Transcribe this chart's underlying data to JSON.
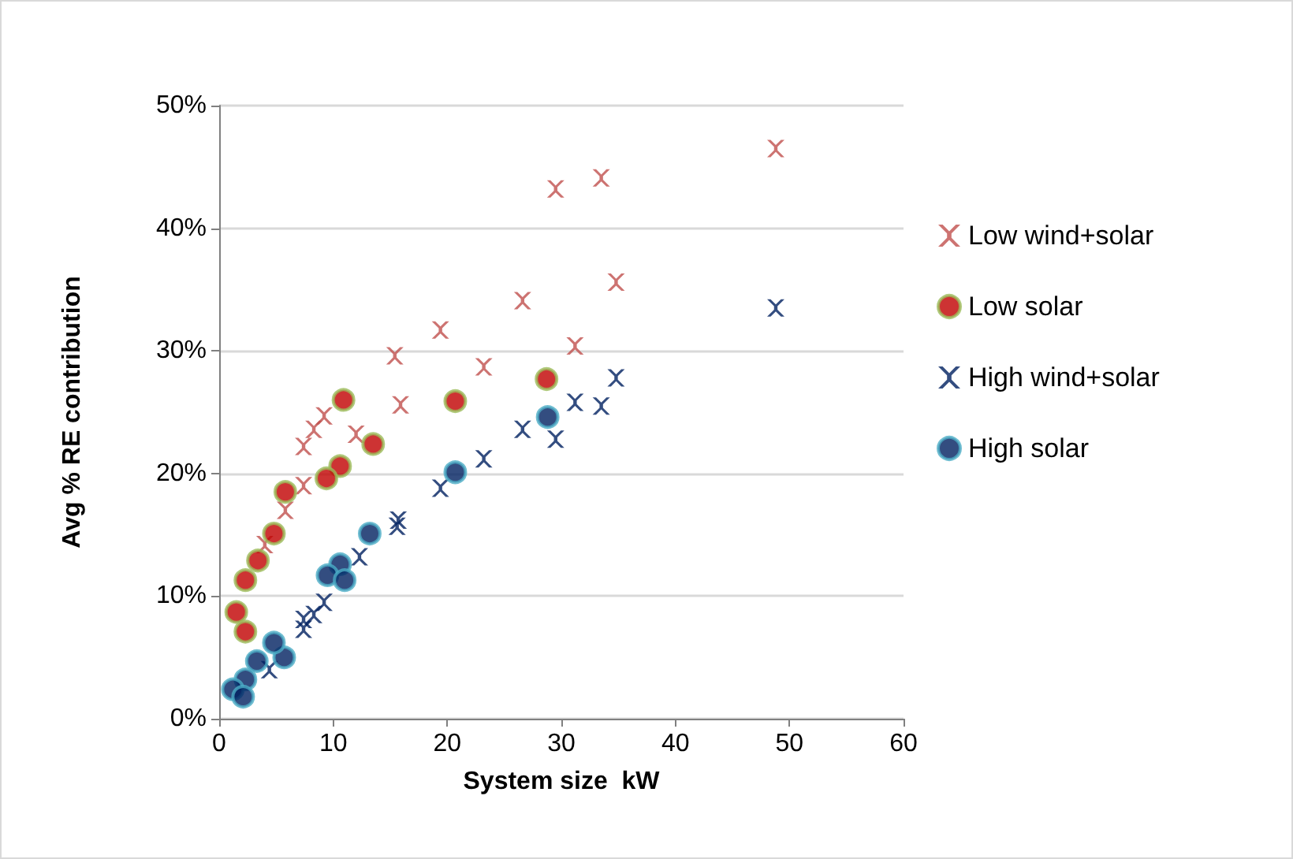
{
  "chart_data": {
    "type": "scatter",
    "xlabel": "System size  kW",
    "ylabel": "Avg % RE contribution",
    "xlim": [
      0,
      60
    ],
    "xticks": [
      0,
      10,
      20,
      30,
      40,
      50,
      60
    ],
    "ylim": [
      0,
      50
    ],
    "yticks": [
      {
        "value": 0,
        "label": "0%"
      },
      {
        "value": 10,
        "label": "10%"
      },
      {
        "value": 20,
        "label": "20%"
      },
      {
        "value": 30,
        "label": "30%"
      },
      {
        "value": 40,
        "label": "40%"
      },
      {
        "value": 50,
        "label": "50%"
      }
    ],
    "grid": "y",
    "legend": "right",
    "series": [
      {
        "name": "Low wind+solar",
        "color": "#c0504d",
        "marker": "cross",
        "x": [
          48.8,
          29.5,
          33.5,
          34.8,
          26.6,
          31.2,
          19.4,
          23.2,
          15.4,
          15.9,
          12,
          9.2,
          8.3,
          7.4,
          7.4,
          5.8,
          4
        ],
        "values": [
          46.5,
          43.2,
          44.1,
          35.6,
          34.1,
          30.4,
          31.7,
          28.7,
          29.6,
          25.6,
          23.2,
          24.7,
          23.6,
          22.2,
          19,
          17,
          14.2
        ]
      },
      {
        "name": "Low solar",
        "color": "#c00000",
        "marker": "circle",
        "x": [
          28.7,
          20.7,
          10.9,
          13.5,
          10.6,
          9.4,
          5.8,
          4.8,
          3.4,
          2.3,
          1.5,
          2.3
        ],
        "values": [
          27.7,
          25.9,
          26,
          22.4,
          20.6,
          19.6,
          18.5,
          15.1,
          12.9,
          11.3,
          8.7,
          7.1
        ]
      },
      {
        "name": "High wind+solar",
        "color": "#002060",
        "marker": "cross",
        "x": [
          48.8,
          34.8,
          31.2,
          33.5,
          29.5,
          26.6,
          23.2,
          19.4,
          15.7,
          15.6,
          12.3,
          9.2,
          8.3,
          7.4,
          7.4,
          4.4
        ],
        "values": [
          33.5,
          27.8,
          25.8,
          25.5,
          22.8,
          23.6,
          21.2,
          18.8,
          16.2,
          15.7,
          13.2,
          9.5,
          8.5,
          8.1,
          7.3,
          4
        ]
      },
      {
        "name": "High solar",
        "color": "#002060",
        "marker": "circle",
        "x": [
          28.8,
          20.7,
          13.2,
          10.6,
          9.5,
          11,
          5.7,
          4.8,
          3.3,
          2.3,
          1.2,
          2.1
        ],
        "values": [
          24.6,
          20.1,
          15.1,
          12.6,
          11.7,
          11.3,
          5,
          6.2,
          4.7,
          3.2,
          2.4,
          1.8
        ]
      }
    ]
  }
}
